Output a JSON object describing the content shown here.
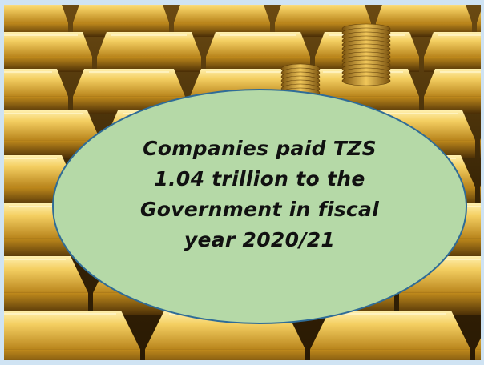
{
  "headline": {
    "line1": "Companies paid TZS",
    "line2": "1.04 trillion to the",
    "line3": "Government in fiscal",
    "line4": "year 2020/21"
  },
  "colors": {
    "bubble_fill": "#b5d9a7",
    "bubble_stroke": "#2f6c97",
    "frame": "#cfe3f3",
    "gold_light": "#f6d36a",
    "gold_mid": "#c9941f",
    "gold_dark": "#5a3a08"
  },
  "background": {
    "subject": "stacked-gold-bars-with-coins-icon"
  }
}
